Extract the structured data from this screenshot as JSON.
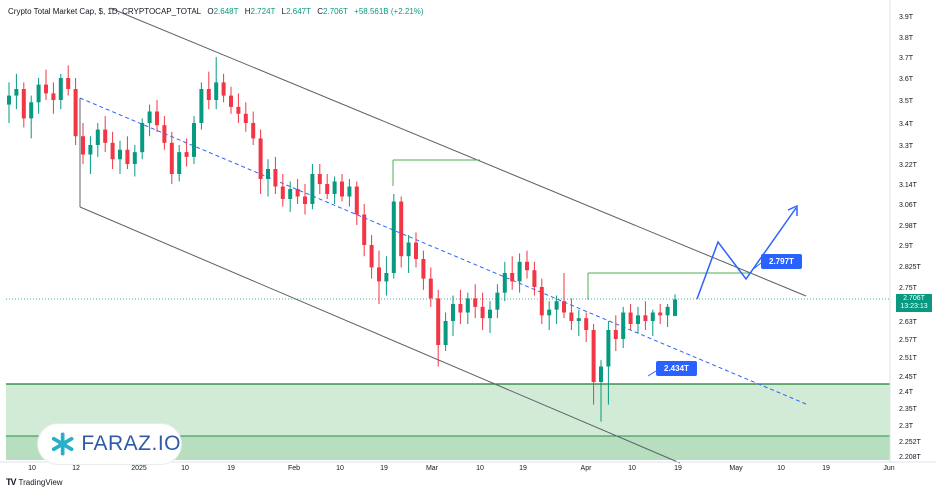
{
  "header": {
    "symbol_line": "Crypto Total Market Cap, $, 1D, CRYPTOCAP_TOTAL",
    "open_label": "O",
    "open": "2.648T",
    "high_label": "H",
    "high": "2.724T",
    "low_label": "L",
    "low": "2.647T",
    "close_label": "C",
    "close": "2.706T",
    "change": "+58.561B (+2.21%)"
  },
  "price_axis": {
    "ticks": [
      "3.9T",
      "3.8T",
      "3.7T",
      "3.6T",
      "3.5T",
      "3.4T",
      "3.3T",
      "3.22T",
      "3.14T",
      "3.06T",
      "2.98T",
      "2.9T",
      "2.825T",
      "2.75T",
      "2.63T",
      "2.57T",
      "2.51T",
      "2.45T",
      "2.4T",
      "2.35T",
      "2.3T",
      "2.252T",
      "2.208T"
    ],
    "current_price": "2.706T",
    "countdown": "13:23:13"
  },
  "time_axis": {
    "labels": [
      "10",
      "12",
      "2025",
      "10",
      "19",
      "Feb",
      "10",
      "19",
      "Mar",
      "10",
      "19",
      "Apr",
      "10",
      "19",
      "May",
      "10",
      "19",
      "Jun"
    ]
  },
  "callouts": {
    "upper": "2.797T",
    "lower": "2.434T"
  },
  "logo": {
    "text": "FARAZ.IO"
  },
  "footer": {
    "brand_mark": "TV",
    "brand": "TradingView"
  },
  "colors": {
    "up": "#089981",
    "down": "#f23645",
    "channel": "#5d606b",
    "midline": "#2962ff",
    "zone": "#cde9d3",
    "support": "#1e7b34",
    "callout": "#2962ff"
  },
  "chart_data": {
    "type": "candlestick",
    "y_scale": "nonuniform-ticks",
    "candles_ohlc_approx": [
      [
        3.48,
        3.58,
        3.4,
        3.52
      ],
      [
        3.52,
        3.62,
        3.46,
        3.55
      ],
      [
        3.55,
        3.58,
        3.38,
        3.42
      ],
      [
        3.42,
        3.52,
        3.33,
        3.49
      ],
      [
        3.49,
        3.6,
        3.44,
        3.57
      ],
      [
        3.57,
        3.64,
        3.5,
        3.53
      ],
      [
        3.53,
        3.58,
        3.44,
        3.5
      ],
      [
        3.5,
        3.62,
        3.46,
        3.6
      ],
      [
        3.6,
        3.66,
        3.52,
        3.55
      ],
      [
        3.55,
        3.6,
        3.3,
        3.34
      ],
      [
        3.34,
        3.4,
        3.22,
        3.26
      ],
      [
        3.26,
        3.34,
        3.18,
        3.3
      ],
      [
        3.3,
        3.4,
        3.25,
        3.37
      ],
      [
        3.37,
        3.43,
        3.27,
        3.31
      ],
      [
        3.31,
        3.36,
        3.2,
        3.24
      ],
      [
        3.24,
        3.32,
        3.18,
        3.28
      ],
      [
        3.28,
        3.34,
        3.2,
        3.22
      ],
      [
        3.22,
        3.3,
        3.17,
        3.27
      ],
      [
        3.27,
        3.42,
        3.24,
        3.4
      ],
      [
        3.4,
        3.48,
        3.34,
        3.45
      ],
      [
        3.45,
        3.5,
        3.36,
        3.39
      ],
      [
        3.39,
        3.43,
        3.28,
        3.31
      ],
      [
        3.31,
        3.36,
        3.14,
        3.18
      ],
      [
        3.18,
        3.3,
        3.15,
        3.27
      ],
      [
        3.27,
        3.33,
        3.21,
        3.25
      ],
      [
        3.25,
        3.43,
        3.22,
        3.4
      ],
      [
        3.4,
        3.58,
        3.37,
        3.55
      ],
      [
        3.55,
        3.63,
        3.46,
        3.5
      ],
      [
        3.5,
        3.7,
        3.46,
        3.58
      ],
      [
        3.58,
        3.62,
        3.49,
        3.52
      ],
      [
        3.52,
        3.56,
        3.44,
        3.47
      ],
      [
        3.47,
        3.53,
        3.4,
        3.44
      ],
      [
        3.44,
        3.49,
        3.36,
        3.4
      ],
      [
        3.4,
        3.45,
        3.3,
        3.33
      ],
      [
        3.33,
        3.37,
        3.1,
        3.16
      ],
      [
        3.16,
        3.24,
        3.09,
        3.2
      ],
      [
        3.2,
        3.25,
        3.1,
        3.13
      ],
      [
        3.13,
        3.18,
        3.05,
        3.08
      ],
      [
        3.08,
        3.15,
        3.03,
        3.12
      ],
      [
        3.12,
        3.16,
        3.06,
        3.09
      ],
      [
        3.09,
        3.14,
        3.02,
        3.06
      ],
      [
        3.06,
        3.22,
        3.04,
        3.18
      ],
      [
        3.18,
        3.22,
        3.1,
        3.14
      ],
      [
        3.14,
        3.18,
        3.08,
        3.1
      ],
      [
        3.1,
        3.17,
        3.06,
        3.15
      ],
      [
        3.15,
        3.18,
        3.07,
        3.09
      ],
      [
        3.09,
        3.16,
        3.05,
        3.13
      ],
      [
        3.13,
        3.15,
        2.98,
        3.02
      ],
      [
        3.02,
        3.06,
        2.86,
        2.9
      ],
      [
        2.9,
        2.94,
        2.78,
        2.82
      ],
      [
        2.82,
        2.88,
        2.69,
        2.77
      ],
      [
        2.77,
        2.86,
        2.72,
        2.8
      ],
      [
        2.8,
        3.1,
        2.78,
        3.07
      ],
      [
        3.07,
        3.09,
        2.82,
        2.86
      ],
      [
        2.86,
        2.94,
        2.8,
        2.91
      ],
      [
        2.91,
        2.95,
        2.82,
        2.85
      ],
      [
        2.85,
        2.88,
        2.74,
        2.78
      ],
      [
        2.78,
        2.82,
        2.68,
        2.71
      ],
      [
        2.71,
        2.74,
        2.48,
        2.55
      ],
      [
        2.55,
        2.66,
        2.53,
        2.63
      ],
      [
        2.63,
        2.72,
        2.58,
        2.69
      ],
      [
        2.69,
        2.74,
        2.62,
        2.66
      ],
      [
        2.66,
        2.73,
        2.62,
        2.71
      ],
      [
        2.71,
        2.76,
        2.64,
        2.68
      ],
      [
        2.68,
        2.73,
        2.6,
        2.64
      ],
      [
        2.64,
        2.7,
        2.59,
        2.67
      ],
      [
        2.67,
        2.76,
        2.64,
        2.73
      ],
      [
        2.73,
        2.84,
        2.7,
        2.8
      ],
      [
        2.8,
        2.86,
        2.74,
        2.77
      ],
      [
        2.77,
        2.87,
        2.73,
        2.84
      ],
      [
        2.84,
        2.88,
        2.78,
        2.81
      ],
      [
        2.81,
        2.84,
        2.72,
        2.75
      ],
      [
        2.75,
        2.78,
        2.62,
        2.65
      ],
      [
        2.65,
        2.7,
        2.6,
        2.67
      ],
      [
        2.67,
        2.72,
        2.62,
        2.7
      ],
      [
        2.7,
        2.8,
        2.64,
        2.66
      ],
      [
        2.66,
        2.71,
        2.6,
        2.63
      ],
      [
        2.63,
        2.67,
        2.58,
        2.64
      ],
      [
        2.64,
        2.66,
        2.56,
        2.6
      ],
      [
        2.6,
        2.62,
        2.36,
        2.43
      ],
      [
        2.43,
        2.5,
        2.31,
        2.48
      ],
      [
        2.48,
        2.63,
        2.36,
        2.6
      ],
      [
        2.6,
        2.65,
        2.53,
        2.57
      ],
      [
        2.57,
        2.68,
        2.54,
        2.66
      ],
      [
        2.66,
        2.69,
        2.6,
        2.62
      ],
      [
        2.62,
        2.68,
        2.59,
        2.65
      ],
      [
        2.65,
        2.7,
        2.6,
        2.63
      ],
      [
        2.63,
        2.67,
        2.58,
        2.66
      ],
      [
        2.66,
        2.69,
        2.62,
        2.65
      ],
      [
        2.65,
        2.69,
        2.61,
        2.68
      ],
      [
        2.648,
        2.724,
        2.647,
        2.706
      ]
    ],
    "annotations": {
      "resistance_label": "2.797T",
      "support_label": "2.434T"
    }
  }
}
